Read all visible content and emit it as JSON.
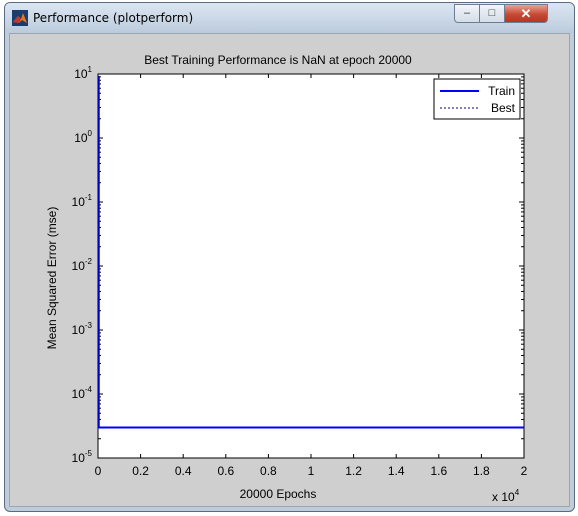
{
  "window": {
    "title": "Performance (plotperform)",
    "controls": {
      "minimize": "–",
      "maximize": "□",
      "close": "✕"
    }
  },
  "icons": {
    "app": "matlab-logo-icon"
  },
  "colors": {
    "train": "#0000ff",
    "best": "#000080",
    "figure_bg": "#cfcfcf"
  },
  "chart_data": {
    "type": "line",
    "title": "Best Training Performance is NaN at epoch 20000",
    "xlabel": "20000 Epochs",
    "ylabel": "Mean Squared Error  (mse)",
    "xscale": "linear",
    "yscale": "log",
    "xlim": [
      0,
      20000
    ],
    "ylim": [
      1e-05,
      10
    ],
    "x_ticks": [
      0,
      2000,
      4000,
      6000,
      8000,
      10000,
      12000,
      14000,
      16000,
      18000,
      20000
    ],
    "x_tick_labels": [
      "0",
      "0.2",
      "0.4",
      "0.6",
      "0.8",
      "1",
      "1.2",
      "1.4",
      "1.6",
      "1.8",
      "2"
    ],
    "x_multiplier": {
      "base": "x 10",
      "exp": "4"
    },
    "y_ticks": [
      {
        "value": 10,
        "base": "10",
        "exp": "1"
      },
      {
        "value": 1,
        "base": "10",
        "exp": "0"
      },
      {
        "value": 0.1,
        "base": "10",
        "exp": "-1"
      },
      {
        "value": 0.01,
        "base": "10",
        "exp": "-2"
      },
      {
        "value": 0.001,
        "base": "10",
        "exp": "-3"
      },
      {
        "value": 0.0001,
        "base": "10",
        "exp": "-4"
      },
      {
        "value": 1e-05,
        "base": "10",
        "exp": "-5"
      }
    ],
    "grid": false,
    "legend_position": "top-right",
    "series": [
      {
        "name": "Train",
        "style": "solid",
        "color": "#0000ff",
        "x": [
          0,
          20000
        ],
        "y": [
          3e-05,
          3e-05
        ],
        "initial_spike": [
          0,
          10
        ]
      },
      {
        "name": "Best",
        "style": "dotted",
        "color": "#000080",
        "x": [],
        "y": []
      }
    ]
  }
}
